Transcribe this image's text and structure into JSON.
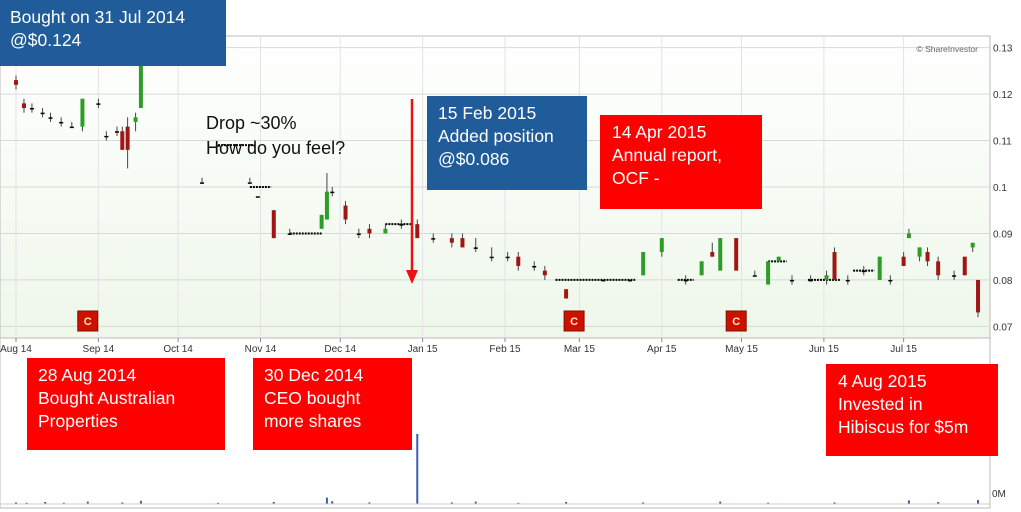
{
  "watermark": "© ShareInvestor",
  "annotations": [
    {
      "id": "bought",
      "text": "Bought on 31 Jul 2014\n@$0.124",
      "style": "blue"
    },
    {
      "id": "drop",
      "text": "Drop ~30%\nHow do you feel?",
      "style": "plain"
    },
    {
      "id": "feb",
      "text": "15 Feb 2015\nAdded position\n@$0.086",
      "style": "blue"
    },
    {
      "id": "apr",
      "text": "14 Apr 2015\nAnnual report,\nOCF -",
      "style": "red"
    },
    {
      "id": "aug",
      "text": "28 Aug 2014\nBought Australian\nProperties",
      "style": "red"
    },
    {
      "id": "dec",
      "text": "30 Dec 2014\nCEO bought\nmore shares",
      "style": "red"
    },
    {
      "id": "hib",
      "text": "4 Aug 2015\nInvested in\nHibiscus for $5m",
      "style": "red"
    }
  ],
  "chart_data": {
    "type": "candlestick",
    "x_ticks": [
      "Aug 14",
      "Sep 14",
      "Oct 14",
      "Nov 14",
      "Dec 14",
      "Jan 15",
      "Feb 15",
      "Mar 15",
      "Apr 15",
      "May 15",
      "Jun 15",
      "Jul 15"
    ],
    "y_ticks": [
      "0.13",
      "0.12",
      "0.11",
      "0.1",
      "0.09",
      "0.08",
      "0.07"
    ],
    "ylim": [
      0.0675,
      0.1325
    ],
    "grid": true,
    "series_prices": [
      {
        "date": "2014-08-01",
        "open": 0.123,
        "high": 0.124,
        "low": 0.121,
        "close": 0.122
      },
      {
        "date": "2014-08-04",
        "open": 0.118,
        "high": 0.119,
        "low": 0.116,
        "close": 0.117
      },
      {
        "date": "2014-08-07",
        "open": 0.117,
        "high": 0.118,
        "low": 0.116,
        "close": 0.117
      },
      {
        "date": "2014-08-11",
        "open": 0.116,
        "high": 0.117,
        "low": 0.115,
        "close": 0.116
      },
      {
        "date": "2014-08-14",
        "open": 0.115,
        "high": 0.116,
        "low": 0.114,
        "close": 0.115
      },
      {
        "date": "2014-08-18",
        "open": 0.114,
        "high": 0.115,
        "low": 0.113,
        "close": 0.114
      },
      {
        "date": "2014-08-22",
        "open": 0.113,
        "high": 0.114,
        "low": 0.113,
        "close": 0.113
      },
      {
        "date": "2014-08-26",
        "open": 0.113,
        "high": 0.119,
        "low": 0.112,
        "close": 0.119
      },
      {
        "date": "2014-09-01",
        "open": 0.118,
        "high": 0.119,
        "low": 0.117,
        "close": 0.118
      },
      {
        "date": "2014-09-04",
        "open": 0.111,
        "high": 0.112,
        "low": 0.11,
        "close": 0.111
      },
      {
        "date": "2014-09-08",
        "open": 0.112,
        "high": 0.113,
        "low": 0.111,
        "close": 0.112
      },
      {
        "date": "2014-09-10",
        "open": 0.112,
        "high": 0.113,
        "low": 0.108,
        "close": 0.108
      },
      {
        "date": "2014-09-12",
        "open": 0.113,
        "high": 0.115,
        "low": 0.104,
        "close": 0.108
      },
      {
        "date": "2014-09-15",
        "open": 0.114,
        "high": 0.116,
        "low": 0.112,
        "close": 0.115
      },
      {
        "date": "2014-09-17",
        "open": 0.117,
        "high": 0.128,
        "low": 0.117,
        "close": 0.128
      },
      {
        "date": "2014-09-26",
        "open": 0.128,
        "high": 0.128,
        "low": 0.128,
        "close": 0.128
      },
      {
        "date": "2014-10-10",
        "open": 0.101,
        "high": 0.102,
        "low": 0.101,
        "close": 0.101
      },
      {
        "date": "2014-10-16",
        "open": 0.109,
        "high": 0.109,
        "low": 0.109,
        "close": 0.109
      },
      {
        "date": "2014-10-28",
        "open": 0.101,
        "high": 0.102,
        "low": 0.101,
        "close": 0.101
      },
      {
        "date": "2014-10-31",
        "open": 0.098,
        "high": 0.098,
        "low": 0.098,
        "close": 0.098
      },
      {
        "date": "2014-11-06",
        "open": 0.095,
        "high": 0.095,
        "low": 0.089,
        "close": 0.089
      },
      {
        "date": "2014-11-12",
        "open": 0.09,
        "high": 0.091,
        "low": 0.09,
        "close": 0.09
      },
      {
        "date": "2014-11-24",
        "open": 0.091,
        "high": 0.094,
        "low": 0.091,
        "close": 0.094
      },
      {
        "date": "2014-11-26",
        "open": 0.093,
        "high": 0.103,
        "low": 0.093,
        "close": 0.099
      },
      {
        "date": "2014-11-28",
        "open": 0.099,
        "high": 0.1,
        "low": 0.098,
        "close": 0.099
      },
      {
        "date": "2014-12-03",
        "open": 0.096,
        "high": 0.097,
        "low": 0.092,
        "close": 0.093
      },
      {
        "date": "2014-12-08",
        "open": 0.09,
        "high": 0.091,
        "low": 0.089,
        "close": 0.09
      },
      {
        "date": "2014-12-12",
        "open": 0.091,
        "high": 0.092,
        "low": 0.089,
        "close": 0.09
      },
      {
        "date": "2014-12-18",
        "open": 0.09,
        "high": 0.092,
        "low": 0.09,
        "close": 0.091
      },
      {
        "date": "2014-12-24",
        "open": 0.092,
        "high": 0.093,
        "low": 0.091,
        "close": 0.092
      },
      {
        "date": "2014-12-30",
        "open": 0.092,
        "high": 0.093,
        "low": 0.089,
        "close": 0.089
      },
      {
        "date": "2015-01-05",
        "open": 0.089,
        "high": 0.09,
        "low": 0.088,
        "close": 0.089
      },
      {
        "date": "2015-01-12",
        "open": 0.089,
        "high": 0.09,
        "low": 0.087,
        "close": 0.088
      },
      {
        "date": "2015-01-16",
        "open": 0.089,
        "high": 0.09,
        "low": 0.087,
        "close": 0.087
      },
      {
        "date": "2015-01-21",
        "open": 0.087,
        "high": 0.089,
        "low": 0.086,
        "close": 0.087
      },
      {
        "date": "2015-01-27",
        "open": 0.085,
        "high": 0.087,
        "low": 0.084,
        "close": 0.085
      },
      {
        "date": "2015-02-02",
        "open": 0.085,
        "high": 0.086,
        "low": 0.084,
        "close": 0.085
      },
      {
        "date": "2015-02-06",
        "open": 0.085,
        "high": 0.086,
        "low": 0.082,
        "close": 0.083
      },
      {
        "date": "2015-02-12",
        "open": 0.083,
        "high": 0.084,
        "low": 0.082,
        "close": 0.083
      },
      {
        "date": "2015-02-16",
        "open": 0.082,
        "high": 0.083,
        "low": 0.08,
        "close": 0.081
      },
      {
        "date": "2015-02-24",
        "open": 0.078,
        "high": 0.078,
        "low": 0.076,
        "close": 0.076
      },
      {
        "date": "2015-03-10",
        "open": 0.08,
        "high": 0.08,
        "low": 0.08,
        "close": 0.08
      },
      {
        "date": "2015-03-20",
        "open": 0.08,
        "high": 0.08,
        "low": 0.08,
        "close": 0.08
      },
      {
        "date": "2015-03-25",
        "open": 0.081,
        "high": 0.086,
        "low": 0.081,
        "close": 0.086
      },
      {
        "date": "2015-04-01",
        "open": 0.086,
        "high": 0.089,
        "low": 0.085,
        "close": 0.089
      },
      {
        "date": "2015-04-10",
        "open": 0.08,
        "high": 0.081,
        "low": 0.079,
        "close": 0.08
      },
      {
        "date": "2015-04-16",
        "open": 0.081,
        "high": 0.084,
        "low": 0.081,
        "close": 0.084
      },
      {
        "date": "2015-04-20",
        "open": 0.086,
        "high": 0.088,
        "low": 0.085,
        "close": 0.085
      },
      {
        "date": "2015-04-23",
        "open": 0.082,
        "high": 0.089,
        "low": 0.082,
        "close": 0.089
      },
      {
        "date": "2015-04-29",
        "open": 0.089,
        "high": 0.089,
        "low": 0.082,
        "close": 0.082
      },
      {
        "date": "2015-05-06",
        "open": 0.081,
        "high": 0.082,
        "low": 0.081,
        "close": 0.081
      },
      {
        "date": "2015-05-11",
        "open": 0.079,
        "high": 0.084,
        "low": 0.079,
        "close": 0.084
      },
      {
        "date": "2015-05-15",
        "open": 0.084,
        "high": 0.085,
        "low": 0.084,
        "close": 0.085
      },
      {
        "date": "2015-05-20",
        "open": 0.08,
        "high": 0.081,
        "low": 0.079,
        "close": 0.08
      },
      {
        "date": "2015-05-27",
        "open": 0.08,
        "high": 0.081,
        "low": 0.08,
        "close": 0.08
      },
      {
        "date": "2015-06-02",
        "open": 0.08,
        "high": 0.082,
        "low": 0.079,
        "close": 0.081
      },
      {
        "date": "2015-06-05",
        "open": 0.086,
        "high": 0.087,
        "low": 0.08,
        "close": 0.08
      },
      {
        "date": "2015-06-10",
        "open": 0.08,
        "high": 0.081,
        "low": 0.079,
        "close": 0.08
      },
      {
        "date": "2015-06-16",
        "open": 0.082,
        "high": 0.083,
        "low": 0.081,
        "close": 0.082
      },
      {
        "date": "2015-06-22",
        "open": 0.08,
        "high": 0.085,
        "low": 0.08,
        "close": 0.085
      },
      {
        "date": "2015-06-26",
        "open": 0.08,
        "high": 0.081,
        "low": 0.079,
        "close": 0.08
      },
      {
        "date": "2015-07-01",
        "open": 0.085,
        "high": 0.086,
        "low": 0.083,
        "close": 0.083
      },
      {
        "date": "2015-07-03",
        "open": 0.089,
        "high": 0.091,
        "low": 0.089,
        "close": 0.09
      },
      {
        "date": "2015-07-07",
        "open": 0.085,
        "high": 0.087,
        "low": 0.084,
        "close": 0.087
      },
      {
        "date": "2015-07-10",
        "open": 0.086,
        "high": 0.087,
        "low": 0.083,
        "close": 0.084
      },
      {
        "date": "2015-07-14",
        "open": 0.084,
        "high": 0.085,
        "low": 0.08,
        "close": 0.081
      },
      {
        "date": "2015-07-20",
        "open": 0.081,
        "high": 0.082,
        "low": 0.08,
        "close": 0.081
      },
      {
        "date": "2015-07-24",
        "open": 0.085,
        "high": 0.085,
        "low": 0.081,
        "close": 0.081
      },
      {
        "date": "2015-07-27",
        "open": 0.087,
        "high": 0.088,
        "low": 0.086,
        "close": 0.088
      },
      {
        "date": "2015-07-29",
        "open": 0.08,
        "high": 0.08,
        "low": 0.072,
        "close": 0.073
      }
    ],
    "flat_dashes": [
      {
        "from": "2014-09-17",
        "to": "2014-10-02",
        "price": 0.128
      },
      {
        "from": "2014-10-16",
        "to": "2014-10-30",
        "price": 0.109
      },
      {
        "from": "2014-10-28",
        "to": "2014-11-05",
        "price": 0.1
      },
      {
        "from": "2014-11-12",
        "to": "2014-11-24",
        "price": 0.09
      },
      {
        "from": "2014-12-18",
        "to": "2014-12-28",
        "price": 0.092
      },
      {
        "from": "2015-02-20",
        "to": "2015-03-22",
        "price": 0.08
      },
      {
        "from": "2015-04-07",
        "to": "2015-04-13",
        "price": 0.08
      },
      {
        "from": "2015-05-11",
        "to": "2015-05-18",
        "price": 0.084
      },
      {
        "from": "2015-05-26",
        "to": "2015-06-07",
        "price": 0.08
      },
      {
        "from": "2015-06-12",
        "to": "2015-06-20",
        "price": 0.082
      }
    ],
    "event_markers": [
      {
        "label": "C",
        "date": "2014-08-28"
      },
      {
        "label": "C",
        "date": "2015-02-27"
      },
      {
        "label": "C",
        "date": "2015-04-29"
      }
    ],
    "volume": {
      "y_tick": "0M",
      "bars": [
        {
          "date": "2014-08-01",
          "value": 0.4
        },
        {
          "date": "2014-08-05",
          "value": 0.3
        },
        {
          "date": "2014-08-12",
          "value": 0.5
        },
        {
          "date": "2014-08-19",
          "value": 0.3
        },
        {
          "date": "2014-08-28",
          "value": 0.6
        },
        {
          "date": "2014-09-10",
          "value": 0.4
        },
        {
          "date": "2014-09-17",
          "value": 0.8
        },
        {
          "date": "2014-10-16",
          "value": 0.3
        },
        {
          "date": "2014-11-06",
          "value": 0.5
        },
        {
          "date": "2014-11-26",
          "value": 1.6
        },
        {
          "date": "2014-11-28",
          "value": 0.7
        },
        {
          "date": "2014-12-12",
          "value": 0.4
        },
        {
          "date": "2014-12-30",
          "value": 17.5
        },
        {
          "date": "2015-01-12",
          "value": 0.4
        },
        {
          "date": "2015-01-21",
          "value": 0.6
        },
        {
          "date": "2015-02-06",
          "value": 0.3
        },
        {
          "date": "2015-02-24",
          "value": 0.5
        },
        {
          "date": "2015-03-25",
          "value": 0.4
        },
        {
          "date": "2015-04-23",
          "value": 0.6
        },
        {
          "date": "2015-05-11",
          "value": 0.3
        },
        {
          "date": "2015-06-05",
          "value": 0.4
        },
        {
          "date": "2015-07-03",
          "value": 0.9
        },
        {
          "date": "2015-07-14",
          "value": 0.5
        },
        {
          "date": "2015-07-29",
          "value": 1.0
        }
      ]
    },
    "colors": {
      "up": "#2e9d28",
      "down": "#a01616",
      "flat": "#000000",
      "volume": "#3a5fa8",
      "marker": "#cc1100",
      "arrow": "#ee1111",
      "plot_bg_top": "#ffffff",
      "plot_bg_bottom": "#eef7ea"
    }
  }
}
